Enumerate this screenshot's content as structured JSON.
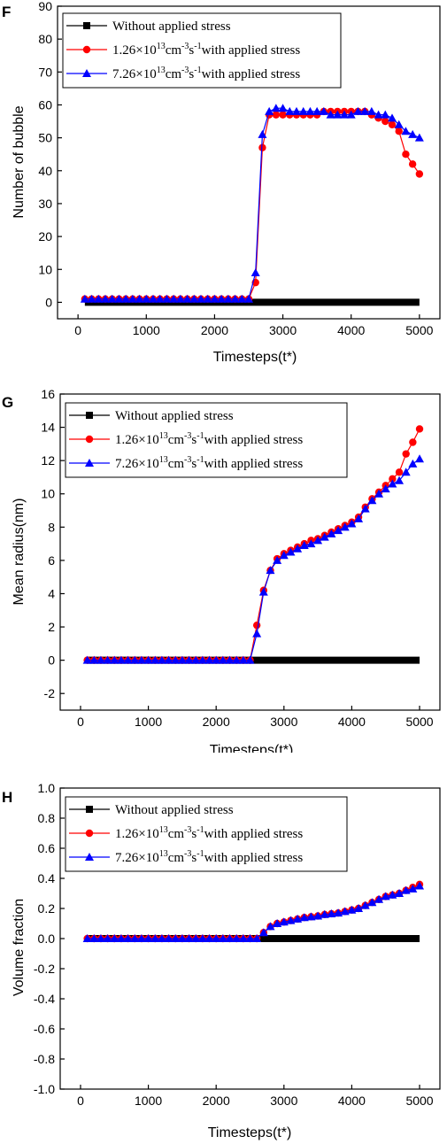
{
  "colors": {
    "series_black": "#000000",
    "series_red": "#ff0000",
    "series_blue": "#0000ff"
  },
  "chart_data": [
    {
      "panel": "F",
      "type": "line",
      "xlabel": "Timesteps(t*)",
      "ylabel": "Number of bubble",
      "xlim": [
        -300,
        5300
      ],
      "ylim": [
        -5,
        90
      ],
      "xticks": [
        0,
        1000,
        2000,
        3000,
        4000,
        5000
      ],
      "yticks": [
        0,
        10,
        20,
        30,
        40,
        50,
        60,
        70,
        80,
        90
      ],
      "legend": {
        "position": "top-left",
        "entries": [
          {
            "text": "Without applied stress"
          },
          {
            "prefix": "1.26×10",
            "sup1": "13",
            "unit": "cm",
            "sup2": "-3",
            "unit2": "s",
            "sup3": "-1",
            "suffix": "with applied stress"
          },
          {
            "prefix": "7.26×10",
            "sup1": "13",
            "unit": "cm",
            "sup2": "-3",
            "unit2": "s",
            "sup3": "-1",
            "suffix": "with applied stress"
          }
        ]
      },
      "series": [
        {
          "marker": "square",
          "color": "#000000",
          "x": [
            100,
            5000
          ],
          "y": [
            0,
            0
          ],
          "dense": true
        },
        {
          "marker": "circle",
          "color": "#ff0000",
          "x": [
            100,
            200,
            300,
            400,
            500,
            600,
            700,
            800,
            900,
            1000,
            1100,
            1200,
            1300,
            1400,
            1500,
            1600,
            1700,
            1800,
            1900,
            2000,
            2100,
            2200,
            2300,
            2400,
            2500,
            2600,
            2700,
            2800,
            2900,
            3000,
            3100,
            3200,
            3300,
            3400,
            3500,
            3600,
            3700,
            3800,
            3900,
            4000,
            4100,
            4200,
            4300,
            4400,
            4500,
            4600,
            4700,
            4800,
            4900,
            5000
          ],
          "y": [
            1,
            1,
            1,
            1,
            1,
            1,
            1,
            1,
            1,
            1,
            1,
            1,
            1,
            1,
            1,
            1,
            1,
            1,
            1,
            1,
            1,
            1,
            1,
            1,
            1,
            6,
            47,
            57,
            57,
            57,
            57,
            57,
            57,
            57,
            57,
            58,
            58,
            58,
            58,
            58,
            58,
            58,
            57,
            56,
            55,
            54,
            52,
            45,
            42,
            39
          ]
        },
        {
          "marker": "triangle",
          "color": "#0000ff",
          "x": [
            100,
            200,
            300,
            400,
            500,
            600,
            700,
            800,
            900,
            1000,
            1100,
            1200,
            1300,
            1400,
            1500,
            1600,
            1700,
            1800,
            1900,
            2000,
            2100,
            2200,
            2300,
            2400,
            2500,
            2600,
            2700,
            2800,
            2900,
            3000,
            3100,
            3200,
            3300,
            3400,
            3500,
            3600,
            3700,
            3800,
            3900,
            4000,
            4100,
            4200,
            4300,
            4400,
            4500,
            4600,
            4700,
            4800,
            4900,
            5000
          ],
          "y": [
            1,
            1,
            1,
            1,
            1,
            1,
            1,
            1,
            1,
            1,
            1,
            1,
            1,
            1,
            1,
            1,
            1,
            1,
            1,
            1,
            1,
            1,
            1,
            1,
            1,
            9,
            51,
            58,
            59,
            59,
            58,
            58,
            58,
            58,
            58,
            58,
            57,
            57,
            57,
            57,
            58,
            58,
            58,
            57,
            57,
            56,
            54,
            52,
            51,
            50
          ]
        }
      ]
    },
    {
      "panel": "G",
      "type": "line",
      "xlabel": "Timesteps(t*)",
      "ylabel": "Mean radius(nm)",
      "xlim": [
        -300,
        5300
      ],
      "ylim": [
        -3,
        16
      ],
      "xticks": [
        0,
        1000,
        2000,
        3000,
        4000,
        5000
      ],
      "yticks": [
        -2,
        0,
        2,
        4,
        6,
        8,
        10,
        12,
        14,
        16
      ],
      "legend": {
        "position": "top-left",
        "entries": [
          {
            "text": "Without applied stress"
          },
          {
            "prefix": "1.26×10",
            "sup1": "13",
            "unit": "cm",
            "sup2": "-3",
            "unit2": "s",
            "sup3": "-1",
            "suffix": "with applied stress"
          },
          {
            "prefix": "7.26×10",
            "sup1": "13",
            "unit": "cm",
            "sup2": "-3",
            "unit2": "s",
            "sup3": "-1",
            "suffix": "with applied stress"
          }
        ]
      },
      "series": [
        {
          "marker": "square",
          "color": "#000000",
          "x": [
            100,
            5000
          ],
          "y": [
            0,
            0
          ],
          "dense": true
        },
        {
          "marker": "circle",
          "color": "#ff0000",
          "x": [
            100,
            200,
            300,
            400,
            500,
            600,
            700,
            800,
            900,
            1000,
            1100,
            1200,
            1300,
            1400,
            1500,
            1600,
            1700,
            1800,
            1900,
            2000,
            2100,
            2200,
            2300,
            2400,
            2500,
            2600,
            2700,
            2800,
            2900,
            3000,
            3100,
            3200,
            3300,
            3400,
            3500,
            3600,
            3700,
            3800,
            3900,
            4000,
            4100,
            4200,
            4300,
            4400,
            4500,
            4600,
            4700,
            4800,
            4900,
            5000
          ],
          "y": [
            0,
            0,
            0,
            0,
            0,
            0,
            0,
            0,
            0,
            0,
            0,
            0,
            0,
            0,
            0,
            0,
            0,
            0,
            0,
            0,
            0,
            0,
            0,
            0,
            0,
            2.1,
            4.2,
            5.4,
            6.1,
            6.4,
            6.6,
            6.8,
            7.0,
            7.2,
            7.3,
            7.5,
            7.7,
            7.9,
            8.1,
            8.3,
            8.6,
            9.2,
            9.7,
            10.1,
            10.5,
            10.9,
            11.3,
            12.4,
            13.1,
            13.9
          ]
        },
        {
          "marker": "triangle",
          "color": "#0000ff",
          "x": [
            100,
            200,
            300,
            400,
            500,
            600,
            700,
            800,
            900,
            1000,
            1100,
            1200,
            1300,
            1400,
            1500,
            1600,
            1700,
            1800,
            1900,
            2000,
            2100,
            2200,
            2300,
            2400,
            2500,
            2600,
            2700,
            2800,
            2900,
            3000,
            3100,
            3200,
            3300,
            3400,
            3500,
            3600,
            3700,
            3800,
            3900,
            4000,
            4100,
            4200,
            4300,
            4400,
            4500,
            4600,
            4700,
            4800,
            4900,
            5000
          ],
          "y": [
            0,
            0,
            0,
            0,
            0,
            0,
            0,
            0,
            0,
            0,
            0,
            0,
            0,
            0,
            0,
            0,
            0,
            0,
            0,
            0,
            0,
            0,
            0,
            0,
            0,
            1.6,
            4.1,
            5.4,
            6.0,
            6.3,
            6.5,
            6.7,
            6.9,
            7.0,
            7.2,
            7.4,
            7.6,
            7.8,
            8.0,
            8.2,
            8.5,
            9.1,
            9.6,
            10.0,
            10.3,
            10.6,
            10.8,
            11.3,
            11.8,
            12.1
          ]
        }
      ]
    },
    {
      "panel": "H",
      "type": "line",
      "xlabel": "Timesteps(t*)",
      "ylabel": "Volume fraction",
      "xlim": [
        -300,
        5300
      ],
      "ylim": [
        -1.0,
        1.0
      ],
      "xticks": [
        0,
        1000,
        2000,
        3000,
        4000,
        5000
      ],
      "yticks": [
        -1.0,
        -0.8,
        -0.6,
        -0.4,
        -0.2,
        0.0,
        0.2,
        0.4,
        0.6,
        0.8,
        1.0
      ],
      "legend": {
        "position": "top-left",
        "entries": [
          {
            "text": "Without applied stress"
          },
          {
            "prefix": "1.26×10",
            "sup1": "13",
            "unit": "cm",
            "sup2": "-3",
            "unit2": "s",
            "sup3": "-1",
            "suffix": "with applied stress"
          },
          {
            "prefix": "7.26×10",
            "sup1": "13",
            "unit": "cm",
            "sup2": "-3",
            "unit2": "s",
            "sup3": "-1",
            "suffix": "with applied stress"
          }
        ]
      },
      "series": [
        {
          "marker": "square",
          "color": "#000000",
          "x": [
            100,
            5000
          ],
          "y": [
            0,
            0
          ],
          "dense": true
        },
        {
          "marker": "circle",
          "color": "#ff0000",
          "x": [
            100,
            200,
            300,
            400,
            500,
            600,
            700,
            800,
            900,
            1000,
            1100,
            1200,
            1300,
            1400,
            1500,
            1600,
            1700,
            1800,
            1900,
            2000,
            2100,
            2200,
            2300,
            2400,
            2500,
            2600,
            2700,
            2800,
            2900,
            3000,
            3100,
            3200,
            3300,
            3400,
            3500,
            3600,
            3700,
            3800,
            3900,
            4000,
            4100,
            4200,
            4300,
            4400,
            4500,
            4600,
            4700,
            4800,
            4900,
            5000
          ],
          "y": [
            0,
            0,
            0,
            0,
            0,
            0,
            0,
            0,
            0,
            0,
            0,
            0,
            0,
            0,
            0,
            0,
            0,
            0,
            0,
            0,
            0,
            0,
            0,
            0,
            0,
            0,
            0.04,
            0.08,
            0.1,
            0.11,
            0.12,
            0.13,
            0.14,
            0.145,
            0.15,
            0.16,
            0.165,
            0.17,
            0.18,
            0.19,
            0.2,
            0.22,
            0.24,
            0.26,
            0.28,
            0.29,
            0.3,
            0.32,
            0.34,
            0.36
          ]
        },
        {
          "marker": "triangle",
          "color": "#0000ff",
          "x": [
            100,
            200,
            300,
            400,
            500,
            600,
            700,
            800,
            900,
            1000,
            1100,
            1200,
            1300,
            1400,
            1500,
            1600,
            1700,
            1800,
            1900,
            2000,
            2100,
            2200,
            2300,
            2400,
            2500,
            2600,
            2700,
            2800,
            2900,
            3000,
            3100,
            3200,
            3300,
            3400,
            3500,
            3600,
            3700,
            3800,
            3900,
            4000,
            4100,
            4200,
            4300,
            4400,
            4500,
            4600,
            4700,
            4800,
            4900,
            5000
          ],
          "y": [
            0,
            0,
            0,
            0,
            0,
            0,
            0,
            0,
            0,
            0,
            0,
            0,
            0,
            0,
            0,
            0,
            0,
            0,
            0,
            0,
            0,
            0,
            0,
            0,
            0,
            0,
            0.04,
            0.08,
            0.1,
            0.11,
            0.12,
            0.13,
            0.14,
            0.145,
            0.15,
            0.16,
            0.165,
            0.17,
            0.18,
            0.19,
            0.2,
            0.22,
            0.24,
            0.26,
            0.28,
            0.29,
            0.3,
            0.32,
            0.33,
            0.35
          ]
        }
      ]
    }
  ]
}
